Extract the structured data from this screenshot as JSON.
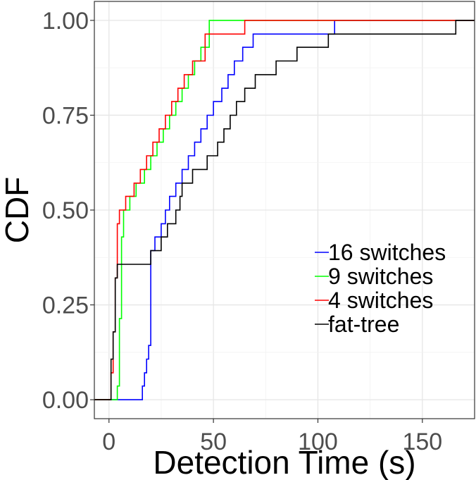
{
  "chart_data": {
    "type": "line",
    "xlabel": "Detection Time (s)",
    "ylabel": "CDF",
    "xlim": [
      -7,
      175
    ],
    "ylim": [
      -0.05,
      1.05
    ],
    "x_ticks": [
      0,
      50,
      100,
      150
    ],
    "x_tick_labels": [
      "0",
      "50",
      "100",
      "150"
    ],
    "y_ticks": [
      0,
      0.25,
      0.5,
      0.75,
      1.0
    ],
    "y_tick_labels": [
      "0.00",
      "0.25",
      "0.50",
      "0.75",
      "1.00"
    ],
    "grid": true,
    "legend_position": "right",
    "series": [
      {
        "name": "16 switches",
        "color": "#0000ff",
        "x": [
          16,
          17,
          18,
          19,
          20,
          22,
          25,
          27,
          29,
          32,
          35,
          38,
          41,
          44,
          47,
          50,
          54,
          57,
          60,
          64,
          69,
          74,
          80,
          86,
          108
        ],
        "y": [
          0.036,
          0.071,
          0.107,
          0.143,
          0.393,
          0.429,
          0.464,
          0.5,
          0.536,
          0.571,
          0.607,
          0.643,
          0.679,
          0.714,
          0.75,
          0.786,
          0.821,
          0.857,
          0.893,
          0.929,
          0.964,
          0.964,
          0.964,
          0.964,
          1.0
        ]
      },
      {
        "name": "9 switches",
        "color": "#00ff00",
        "x": [
          4,
          5,
          6,
          7,
          10,
          13,
          17,
          20,
          23,
          26,
          29,
          32,
          35,
          38,
          41,
          44,
          48
        ],
        "y": [
          0.036,
          0.214,
          0.429,
          0.5,
          0.536,
          0.571,
          0.607,
          0.643,
          0.679,
          0.714,
          0.75,
          0.786,
          0.821,
          0.857,
          0.893,
          0.929,
          1.0
        ]
      },
      {
        "name": "4 switches",
        "color": "#ff0000",
        "x": [
          1,
          2,
          3,
          4,
          5,
          8,
          12,
          15,
          18,
          21,
          24,
          27,
          30,
          33,
          36,
          40,
          46,
          65
        ],
        "y": [
          0.071,
          0.179,
          0.321,
          0.464,
          0.5,
          0.536,
          0.571,
          0.607,
          0.643,
          0.679,
          0.714,
          0.75,
          0.786,
          0.821,
          0.857,
          0.893,
          0.964,
          1.0
        ]
      },
      {
        "name": "fat-tree",
        "color": "#000000",
        "x": [
          1,
          2,
          3,
          4,
          20,
          25,
          28,
          32,
          33,
          34,
          35,
          36,
          40,
          47,
          52,
          55,
          58,
          61,
          65,
          70,
          75,
          80,
          85,
          90,
          97,
          105,
          112,
          124,
          166
        ],
        "y": [
          0.107,
          0.179,
          0.321,
          0.357,
          0.393,
          0.429,
          0.464,
          0.5,
          0.5,
          0.536,
          0.571,
          0.571,
          0.607,
          0.643,
          0.679,
          0.714,
          0.75,
          0.786,
          0.821,
          0.857,
          0.857,
          0.893,
          0.893,
          0.929,
          0.929,
          0.964,
          0.964,
          0.964,
          1.0
        ]
      }
    ]
  }
}
